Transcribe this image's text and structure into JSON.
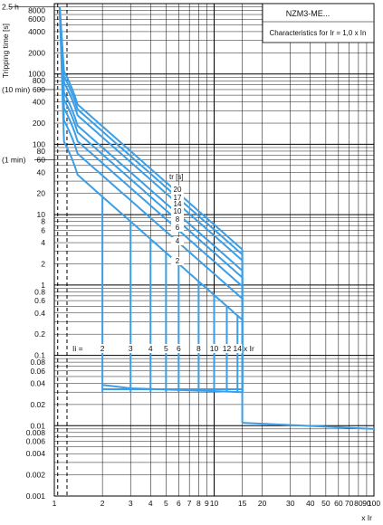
{
  "chart_data": {
    "type": "line",
    "x_scale": "log",
    "y_scale": "log",
    "xlim": [
      1,
      100
    ],
    "ylim": [
      0.001,
      10000
    ],
    "ylabel": "Tripping time [s]",
    "xlabel": "x Ir",
    "x_ticks": [
      "1",
      "2",
      "3",
      "4",
      "5",
      "6",
      "7",
      "8",
      "9",
      "10",
      "15",
      "20",
      "30",
      "40",
      "50",
      "60",
      "70",
      "80",
      "90",
      "100"
    ],
    "x_tick_values": [
      1,
      2,
      3,
      4,
      5,
      6,
      7,
      8,
      9,
      10,
      15,
      20,
      30,
      40,
      50,
      60,
      70,
      80,
      90,
      100
    ],
    "y_ticks": [
      "8000",
      "6000",
      "4000",
      "2000",
      "1000",
      "800",
      "600",
      "400",
      "200",
      "100",
      "80",
      "60",
      "40",
      "20",
      "10",
      "8",
      "6",
      "4",
      "2",
      "1",
      "0.8",
      "0.6",
      "0.4",
      "0.2",
      "0.1",
      "0.08",
      "0.06",
      "0.04",
      "0.02",
      "0.01",
      "0.008",
      "0.006",
      "0.004",
      "0.002",
      "0.001"
    ],
    "y_tick_values": [
      8000,
      6000,
      4000,
      2000,
      1000,
      800,
      600,
      400,
      200,
      100,
      80,
      60,
      40,
      20,
      10,
      8,
      6,
      4,
      2,
      1,
      0.8,
      0.6,
      0.4,
      0.2,
      0.1,
      0.08,
      0.06,
      0.04,
      0.02,
      0.01,
      0.008,
      0.006,
      0.004,
      0.002,
      0.001
    ],
    "time_markers": [
      {
        "label": "2.5 h",
        "value": 9000
      },
      {
        "label": "(10 min)",
        "value": 600
      },
      {
        "label": "(1 min)",
        "value": 60
      }
    ],
    "title_box": {
      "line1": "NZM3-ME...",
      "line2": "Characteristics for Ir = 1,0 x In"
    },
    "tr_label": "tr [s]",
    "tr_values": [
      "20",
      "17",
      "14",
      "10",
      "8",
      "6",
      "4",
      "2"
    ],
    "tr_numbers": [
      20,
      17,
      14,
      10,
      8,
      6,
      4,
      2
    ],
    "ii_prefix": "Ii =",
    "ii_suffix": "x Ir",
    "ii_values": [
      "2",
      "3",
      "4",
      "5",
      "6",
      "8",
      "10",
      "12",
      "14"
    ],
    "ii_numbers": [
      2,
      3,
      4,
      5,
      6,
      8,
      10,
      12,
      14
    ],
    "overload_pickup_range": [
      1.05,
      1.2
    ],
    "instantaneous_time_s": 0.03,
    "tail_time_s_at_15_to_100": [
      0.011,
      0.009
    ],
    "line_color": "#3b9ee6"
  }
}
